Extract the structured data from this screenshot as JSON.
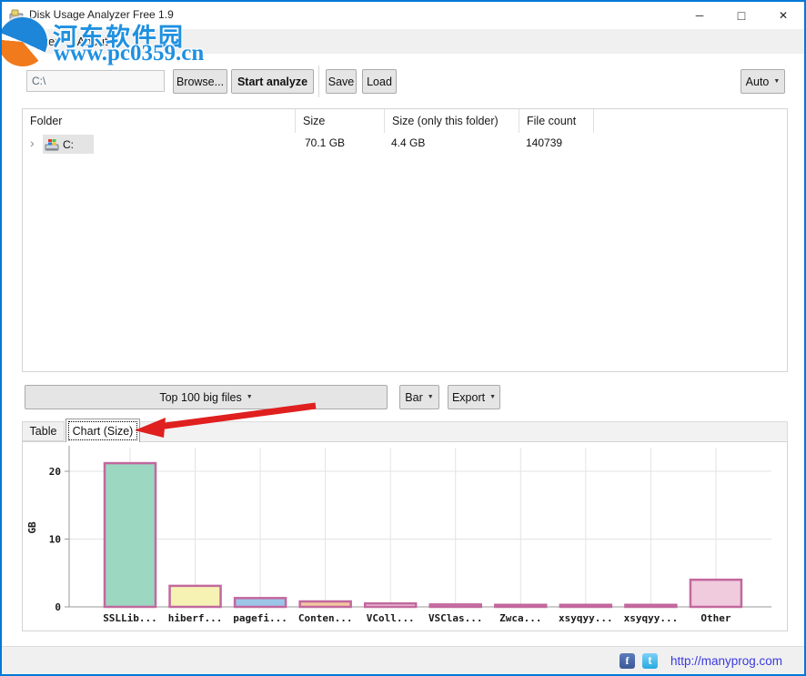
{
  "window": {
    "title": "Disk Usage Analyzer Free 1.9"
  },
  "icons": {
    "minimize": "─",
    "maximize": "□",
    "close": "✕",
    "caret": "▼",
    "expand": "›",
    "facebook": "f",
    "twitter": "t"
  },
  "watermark": {
    "name": "河东软件园",
    "url": "www.pc0359.cn"
  },
  "menu": {
    "items": [
      {
        "label": "Analyzer"
      },
      {
        "label": "About"
      }
    ]
  },
  "toolbar": {
    "path_value": "C:\\",
    "browse": "Browse...",
    "start": "Start analyze",
    "save": "Save",
    "load": "Load",
    "auto": "Auto"
  },
  "folder_table": {
    "columns": [
      "Folder",
      "Size",
      "Size (only this folder)",
      "File count"
    ],
    "rows": [
      {
        "folder": "C:",
        "size": "70.1 GB",
        "size_only_this_folder": "4.4 GB",
        "file_count": "140739"
      }
    ]
  },
  "actions": {
    "top_files": "Top 100 big files",
    "chart_type": "Bar",
    "export": "Export"
  },
  "tabs": {
    "table": "Table",
    "chart": "Chart (Size)"
  },
  "chart_data": {
    "type": "bar",
    "categories": [
      "SSLLib...",
      "hiberf...",
      "pagefi...",
      "Conten...",
      "VColl...",
      "VSClas...",
      "Zwca...",
      "xsyqyy...",
      "xsyqyy...",
      "Other"
    ],
    "values": [
      21.2,
      3.1,
      1.3,
      0.8,
      0.5,
      0.35,
      0.3,
      0.3,
      0.3,
      4.0
    ],
    "unit": "GB",
    "ylabel": "GB",
    "yticks": [
      0,
      10,
      20
    ],
    "ylim": [
      0,
      23.5
    ],
    "grid": true,
    "legend": "none",
    "bar_colors": [
      "#9bd7c1",
      "#f6f2b3",
      "#9cc6e8",
      "#f2c79f",
      "#f0cbdd",
      "#f0cbdd",
      "#f0cbdd",
      "#f0cbdd",
      "#f0cbdd",
      "#f0cbdd"
    ],
    "bar_border_color": "#c2689e"
  },
  "footer": {
    "link": "http://manyprog.com"
  }
}
